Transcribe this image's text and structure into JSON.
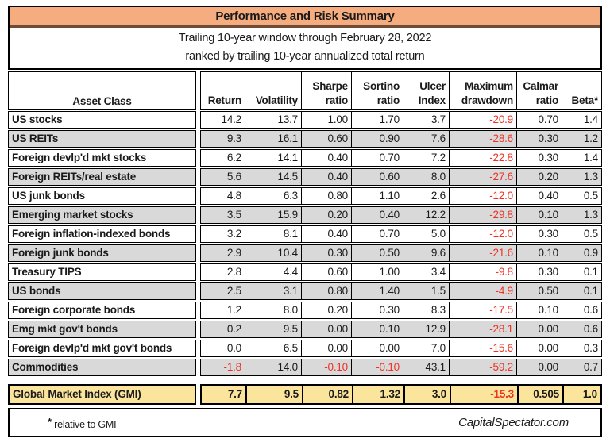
{
  "title": "Performance and Risk Summary",
  "subtitle": {
    "line1": "Trailing 10-year window through February 28, 2022",
    "line2": "ranked by trailing 10-year annualized total return"
  },
  "header": {
    "asset_class": "Asset Class",
    "columns": [
      {
        "top": "",
        "bottom": "Return"
      },
      {
        "top": "",
        "bottom": "Volatility"
      },
      {
        "top": "Sharpe",
        "bottom": "ratio"
      },
      {
        "top": "Sortino",
        "bottom": "ratio"
      },
      {
        "top": "Ulcer",
        "bottom": "Index"
      },
      {
        "top": "Maximum",
        "bottom": "drawdown"
      },
      {
        "top": "Calmar",
        "bottom": "ratio"
      },
      {
        "top": "",
        "bottom": "Beta*"
      }
    ]
  },
  "chart_data": {
    "type": "table",
    "title": "Performance and Risk Summary",
    "subtitle": [
      "Trailing 10-year window through February 28, 2022",
      "ranked by trailing 10-year annualized total return"
    ],
    "columns": [
      "Asset Class",
      "Return",
      "Volatility",
      "Sharpe ratio",
      "Sortino ratio",
      "Ulcer Index",
      "Maximum drawdown",
      "Calmar ratio",
      "Beta*"
    ],
    "rows": [
      {
        "asset": "US stocks",
        "values": [
          "14.2",
          "13.7",
          "1.00",
          "1.70",
          "3.7",
          "-20.9",
          "0.70",
          "1.4"
        ]
      },
      {
        "asset": "US REITs",
        "values": [
          "9.3",
          "16.1",
          "0.60",
          "0.90",
          "7.6",
          "-28.6",
          "0.30",
          "1.2"
        ]
      },
      {
        "asset": "Foreign devlp'd mkt stocks",
        "values": [
          "6.2",
          "14.1",
          "0.40",
          "0.70",
          "7.2",
          "-22.8",
          "0.30",
          "1.4"
        ]
      },
      {
        "asset": "Foreign REITs/real estate",
        "values": [
          "5.6",
          "14.5",
          "0.40",
          "0.60",
          "8.0",
          "-27.6",
          "0.20",
          "1.3"
        ]
      },
      {
        "asset": "US junk bonds",
        "values": [
          "4.8",
          "6.3",
          "0.80",
          "1.10",
          "2.6",
          "-12.0",
          "0.40",
          "0.5"
        ]
      },
      {
        "asset": "Emerging market stocks",
        "values": [
          "3.5",
          "15.9",
          "0.20",
          "0.40",
          "12.2",
          "-29.8",
          "0.10",
          "1.3"
        ]
      },
      {
        "asset": "Foreign inflation-indexed bonds",
        "values": [
          "3.2",
          "8.1",
          "0.40",
          "0.70",
          "5.0",
          "-12.0",
          "0.30",
          "0.5"
        ]
      },
      {
        "asset": "Foreign junk bonds",
        "values": [
          "2.9",
          "10.4",
          "0.30",
          "0.50",
          "9.6",
          "-21.6",
          "0.10",
          "0.9"
        ]
      },
      {
        "asset": "Treasury TIPS",
        "values": [
          "2.8",
          "4.4",
          "0.60",
          "1.00",
          "3.4",
          "-9.8",
          "0.30",
          "0.1"
        ]
      },
      {
        "asset": "US bonds",
        "values": [
          "2.5",
          "3.1",
          "0.80",
          "1.40",
          "1.5",
          "-4.9",
          "0.50",
          "0.1"
        ]
      },
      {
        "asset": "Foreign corporate bonds",
        "values": [
          "1.2",
          "8.0",
          "0.20",
          "0.30",
          "8.3",
          "-17.5",
          "0.10",
          "0.6"
        ]
      },
      {
        "asset": "Emg mkt gov't bonds",
        "values": [
          "0.2",
          "9.5",
          "0.00",
          "0.10",
          "12.9",
          "-28.1",
          "0.00",
          "0.6"
        ]
      },
      {
        "asset": "Foreign devlp'd mkt gov't bonds",
        "values": [
          "0.0",
          "6.5",
          "0.00",
          "0.00",
          "7.0",
          "-15.6",
          "0.00",
          "0.3"
        ]
      },
      {
        "asset": "Commodities",
        "values": [
          "-1.8",
          "14.0",
          "-0.10",
          "-0.10",
          "43.1",
          "-59.2",
          "0.00",
          "0.7"
        ]
      }
    ],
    "gmi": {
      "asset": "Global Market Index (GMI)",
      "values": [
        "7.7",
        "9.5",
        "0.82",
        "1.32",
        "3.0",
        "-15.3",
        "0.505",
        "1.0"
      ]
    }
  },
  "footer": {
    "star": "*",
    "note": " relative to GMI",
    "credit": "CapitalSpectator.com"
  },
  "colors": {
    "title_bg": "#F5AC7E",
    "alt_row_bg": "#D9D9D9",
    "gmi_bg": "#FBE49B",
    "negative": "#EE3124"
  }
}
